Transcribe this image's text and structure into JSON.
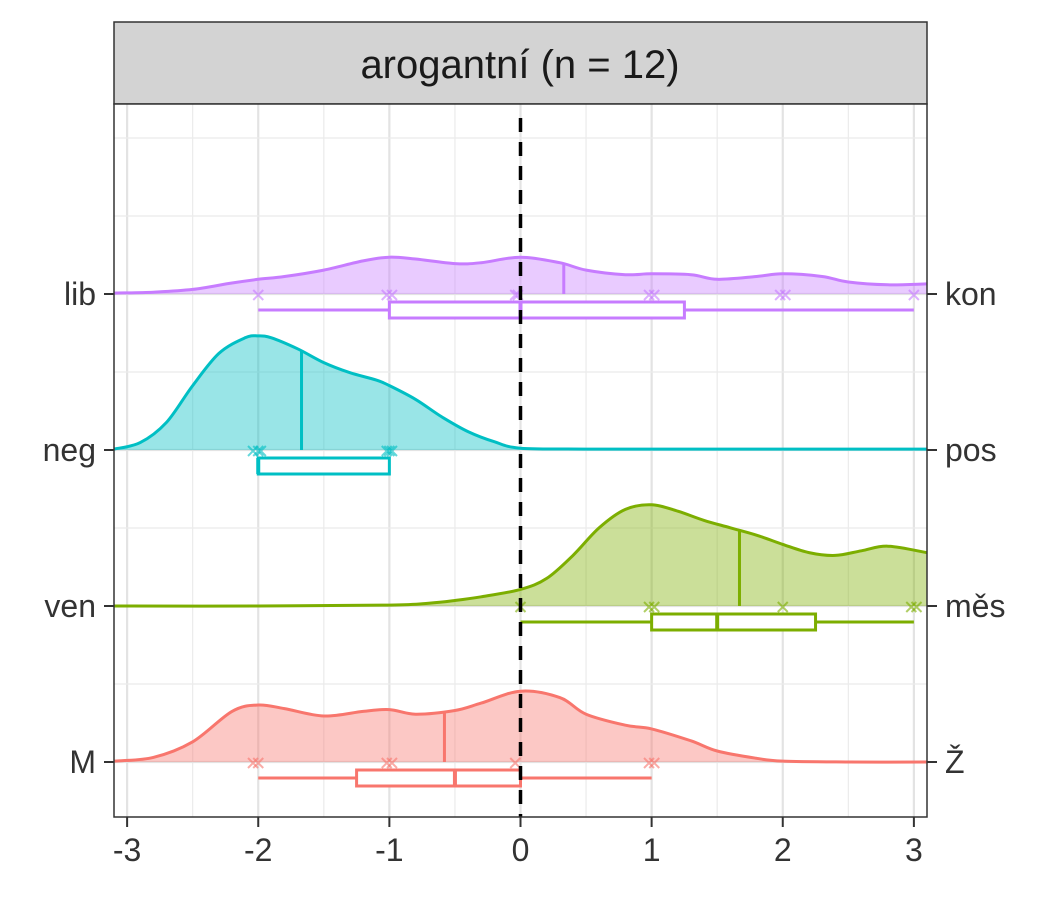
{
  "chart_data": {
    "type": "raincloud",
    "title": "arogantní (n = 12)",
    "xlim": [
      -3.1,
      3.1
    ],
    "x_ticks": [
      -3,
      -2,
      -1,
      0,
      1,
      2,
      3
    ],
    "x_tick_labels": [
      "-3",
      "-2",
      "-1",
      "0",
      "1",
      "2",
      "3"
    ],
    "reference_line_x": 0,
    "grid": true,
    "left_labels": [
      "lib",
      "neg",
      "ven",
      "M"
    ],
    "right_labels": [
      "kon",
      "pos",
      "měs",
      "Ž"
    ],
    "series": [
      {
        "left": "lib",
        "right": "kon",
        "color": "#C77CFF",
        "density_x": [
          -3.1,
          -2.8,
          -2.5,
          -2.2,
          -2.0,
          -1.8,
          -1.5,
          -1.2,
          -1.0,
          -0.8,
          -0.5,
          -0.3,
          0.0,
          0.3,
          0.5,
          0.8,
          1.0,
          1.3,
          1.5,
          1.8,
          2.0,
          2.3,
          2.5,
          2.8,
          3.1
        ],
        "density_y": [
          0.01,
          0.02,
          0.05,
          0.12,
          0.16,
          0.19,
          0.26,
          0.36,
          0.4,
          0.38,
          0.33,
          0.34,
          0.4,
          0.34,
          0.26,
          0.21,
          0.22,
          0.21,
          0.16,
          0.19,
          0.22,
          0.19,
          0.13,
          0.1,
          0.11
        ],
        "points": [
          -2.0,
          -1.02,
          -0.98,
          -0.04,
          -0.02,
          0.98,
          1.02,
          1.98,
          2.02,
          3.0
        ],
        "box": {
          "whisker_low": -2.0,
          "q1": -1.0,
          "median": 0.0,
          "q3": 1.25,
          "whisker_high": 3.0
        },
        "mean": 0.33
      },
      {
        "left": "neg",
        "right": "pos",
        "color": "#00BFC4",
        "density_x": [
          -3.1,
          -2.9,
          -2.7,
          -2.5,
          -2.3,
          -2.1,
          -2.0,
          -1.9,
          -1.7,
          -1.5,
          -1.3,
          -1.1,
          -1.0,
          -0.8,
          -0.6,
          -0.4,
          -0.2,
          0.0,
          0.5,
          1.0,
          2.0,
          3.1
        ],
        "density_y": [
          0.01,
          0.08,
          0.3,
          0.7,
          1.05,
          1.22,
          1.24,
          1.22,
          1.1,
          0.95,
          0.84,
          0.76,
          0.7,
          0.55,
          0.36,
          0.2,
          0.09,
          0.02,
          0.01,
          0.01,
          0.01,
          0.01
        ],
        "points": [
          -2.04,
          -2.0,
          -1.98,
          -1.02,
          -1.0,
          -0.98
        ],
        "box": {
          "whisker_low": -2.0,
          "q1": -2.0,
          "median": -2.0,
          "q3": -1.0,
          "whisker_high": -1.0
        },
        "mean": -1.67
      },
      {
        "left": "ven",
        "right": "měs",
        "color": "#7CAE00",
        "density_x": [
          -3.1,
          -2.0,
          -1.0,
          -0.7,
          -0.5,
          -0.3,
          0.0,
          0.2,
          0.4,
          0.6,
          0.8,
          1.0,
          1.2,
          1.4,
          1.6,
          1.8,
          2.0,
          2.2,
          2.4,
          2.6,
          2.8,
          3.1
        ],
        "density_y": [
          0.0,
          0.0,
          0.01,
          0.03,
          0.06,
          0.1,
          0.18,
          0.3,
          0.55,
          0.85,
          1.05,
          1.1,
          1.03,
          0.93,
          0.85,
          0.77,
          0.67,
          0.58,
          0.55,
          0.6,
          0.65,
          0.58
        ],
        "points": [
          0.0,
          0.98,
          1.02,
          2.0,
          2.98,
          3.02
        ],
        "box": {
          "whisker_low": 0.0,
          "q1": 1.0,
          "median": 1.5,
          "q3": 2.25,
          "whisker_high": 3.0
        },
        "mean": 1.67
      },
      {
        "left": "M",
        "right": "Ž",
        "color": "#F8766D",
        "density_x": [
          -3.1,
          -2.8,
          -2.5,
          -2.2,
          -2.0,
          -1.8,
          -1.5,
          -1.2,
          -1.0,
          -0.8,
          -0.5,
          -0.3,
          0.0,
          0.3,
          0.5,
          0.8,
          1.0,
          1.3,
          1.5,
          1.8,
          2.0,
          2.5,
          3.1
        ],
        "density_y": [
          0.01,
          0.05,
          0.22,
          0.55,
          0.62,
          0.58,
          0.5,
          0.55,
          0.57,
          0.52,
          0.56,
          0.64,
          0.77,
          0.7,
          0.52,
          0.4,
          0.36,
          0.23,
          0.12,
          0.04,
          0.01,
          0.0,
          0.0
        ],
        "points": [
          -2.04,
          -2.0,
          -1.02,
          -0.98,
          -0.04,
          0.98,
          1.02
        ],
        "box": {
          "whisker_low": -2.0,
          "q1": -1.25,
          "median": -0.5,
          "q3": 0.0,
          "whisker_high": 1.0
        },
        "mean": -0.58
      }
    ]
  }
}
